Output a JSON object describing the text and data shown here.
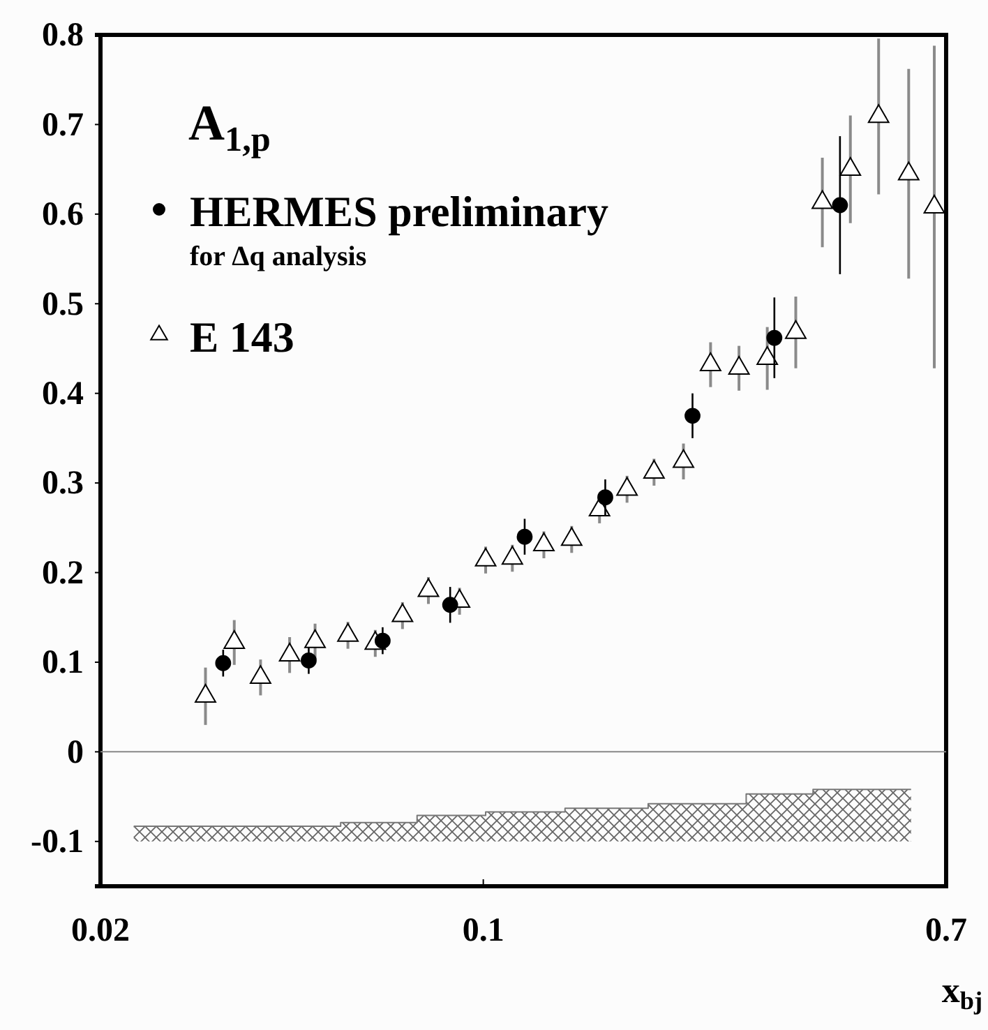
{
  "chart_data": {
    "type": "scatter",
    "title": "A$_{1,p}$",
    "xlabel": "x$_{bj}$",
    "log": "x",
    "xlim": [
      0.02,
      0.7
    ],
    "xticks": [
      0.02,
      0.1,
      0.7
    ],
    "ylim": [
      -0.15,
      0.8
    ],
    "yticks": [
      -0.1,
      0,
      0.1,
      0.2,
      0.3,
      0.4,
      0.5,
      0.6,
      0.7,
      0.8
    ],
    "legend": "top left",
    "annotations": [
      "for Δq analysis"
    ],
    "ref_lines": [
      {
        "axis": "y",
        "value": 0,
        "color": "#888888"
      }
    ],
    "series": [
      {
        "type": "step",
        "color": "#777777",
        "x": [
          0.023,
          0.0549,
          0.0757,
          0.101,
          0.141,
          0.2,
          0.302,
          0.4,
          0.604
        ],
        "values": [
          -0.083,
          -0.079,
          -0.071,
          -0.067,
          -0.063,
          -0.058,
          -0.047,
          -0.042,
          -0.042
        ],
        "lower": [
          -0.1,
          -0.1,
          -0.1,
          -0.1,
          -0.1,
          -0.1,
          -0.1,
          -0.1,
          -0.1
        ],
        "upper": [
          -0.083,
          -0.079,
          -0.071,
          -0.067,
          -0.063,
          -0.058,
          -0.047,
          -0.042,
          -0.042
        ]
      },
      {
        "name": "HERMES preliminary",
        "color": "#000000",
        "marker": "circle",
        "x": [
          0.0335,
          0.048,
          0.0655,
          0.087,
          0.119,
          0.167,
          0.241,
          0.34,
          0.448
        ],
        "values": [
          0.099,
          0.102,
          0.124,
          0.164,
          0.24,
          0.284,
          0.375,
          0.462,
          0.61
        ],
        "errors": [
          0.015,
          0.015,
          0.015,
          0.02,
          0.02,
          0.02,
          0.025,
          0.045,
          0.077
        ]
      },
      {
        "name": "E 143",
        "color": "#000000",
        "marker": "triangle",
        "x": [
          0.0311,
          0.0351,
          0.0392,
          0.0443,
          0.0493,
          0.0566,
          0.0635,
          0.0712,
          0.0794,
          0.0905,
          0.101,
          0.113,
          0.129,
          0.145,
          0.163,
          0.183,
          0.205,
          0.232,
          0.26,
          0.293,
          0.33,
          0.372,
          0.416,
          0.468,
          0.527,
          0.598,
          0.666
        ],
        "values": [
          0.062,
          0.122,
          0.083,
          0.108,
          0.123,
          0.13,
          0.121,
          0.152,
          0.18,
          0.168,
          0.214,
          0.216,
          0.231,
          0.237,
          0.27,
          0.293,
          0.312,
          0.324,
          0.432,
          0.428,
          0.439,
          0.468,
          0.613,
          0.65,
          0.709,
          0.645,
          0.608
        ],
        "errors": [
          0.032,
          0.025,
          0.02,
          0.02,
          0.02,
          0.015,
          0.015,
          0.015,
          0.015,
          0.015,
          0.015,
          0.015,
          0.015,
          0.015,
          0.015,
          0.015,
          0.015,
          0.02,
          0.025,
          0.025,
          0.035,
          0.04,
          0.05,
          0.06,
          0.087,
          0.117,
          0.18
        ]
      }
    ]
  }
}
